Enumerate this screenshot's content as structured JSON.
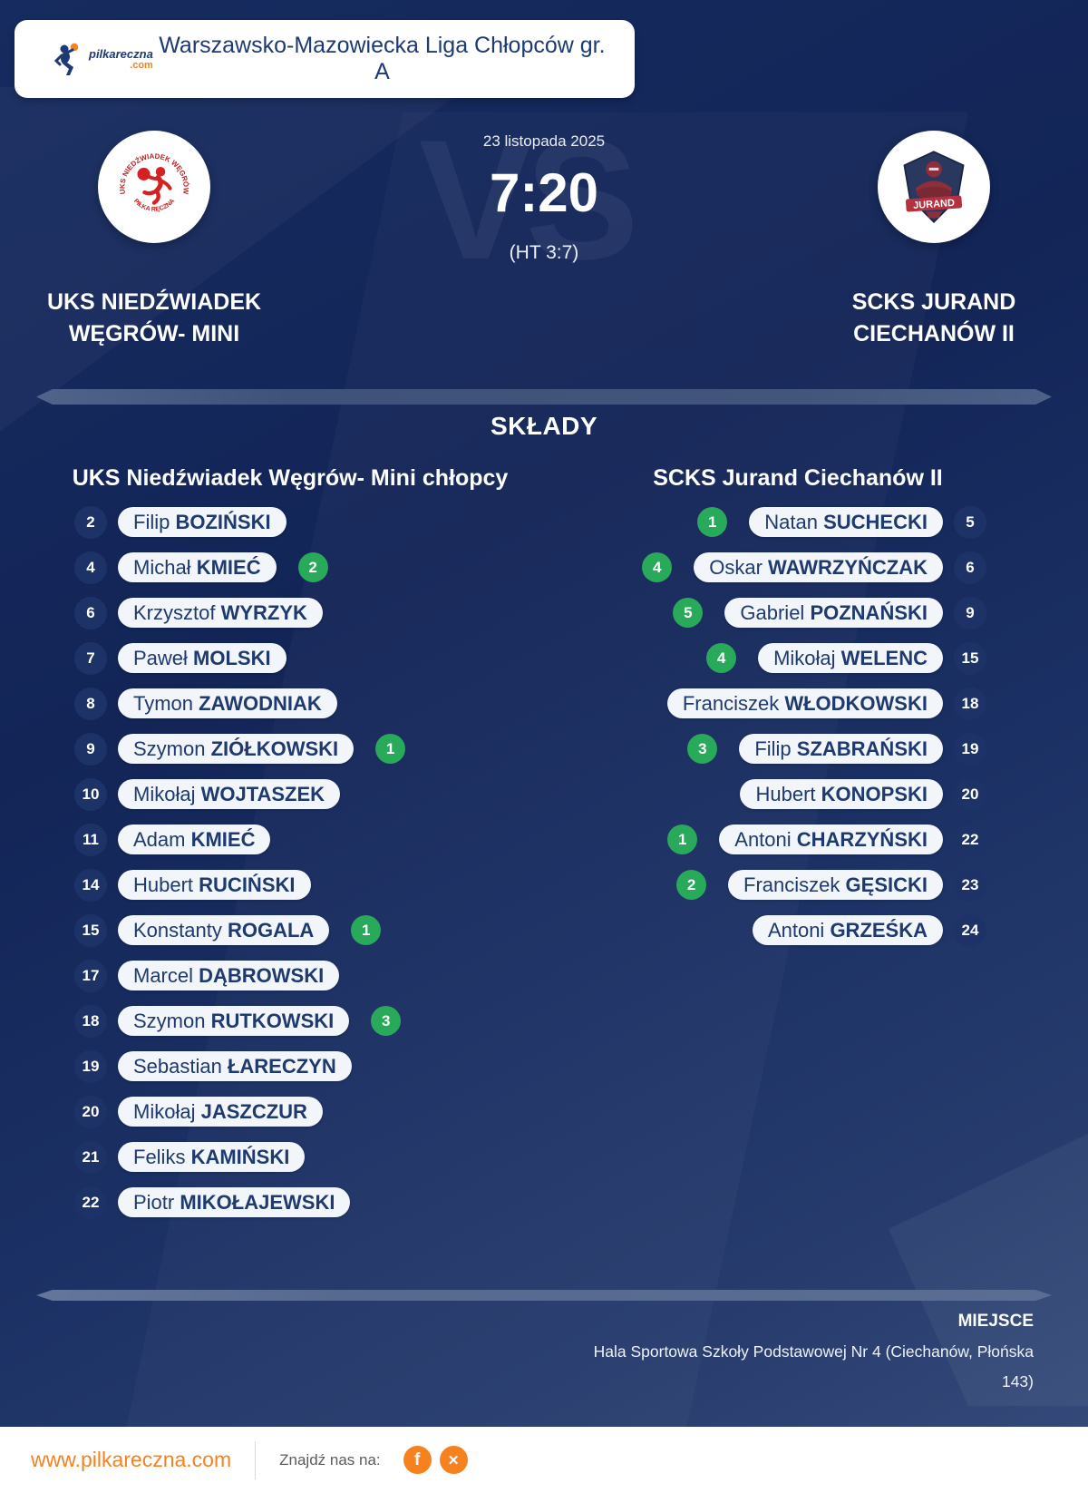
{
  "header": {
    "league_title": "Warszawsko-Mazowiecka Liga Chłopców gr. A",
    "brand": {
      "name": "pilkareczna",
      "tld": ".com"
    }
  },
  "match": {
    "date": "23 listopada 2025",
    "score": "7:20",
    "halftime": "(HT 3:7)",
    "vs": "VS",
    "home": {
      "name": "UKS NIEDŹWIADEK WĘGRÓW- MINI",
      "logo_arc_top": "UKS NIEDŹWIADEK WĘGRÓW",
      "logo_arc_bottom": "PIŁKA RĘCZNA"
    },
    "away": {
      "name": "SCKS JURAND CIECHANÓW II",
      "logo_banner": "JURAND"
    }
  },
  "lineups": {
    "section_title": "SKŁADY",
    "home": {
      "title": "UKS Niedźwiadek Węgrów- Mini chłopcy",
      "players": [
        {
          "number": "2",
          "first": "Filip",
          "last": "BOZIŃSKI",
          "goals": ""
        },
        {
          "number": "4",
          "first": "Michał",
          "last": "KMIEĆ",
          "goals": "2"
        },
        {
          "number": "6",
          "first": "Krzysztof",
          "last": "WYRZYK",
          "goals": ""
        },
        {
          "number": "7",
          "first": "Paweł",
          "last": "MOLSKI",
          "goals": ""
        },
        {
          "number": "8",
          "first": "Tymon",
          "last": "ZAWODNIAK",
          "goals": ""
        },
        {
          "number": "9",
          "first": "Szymon",
          "last": "ZIÓŁKOWSKI",
          "goals": "1"
        },
        {
          "number": "10",
          "first": "Mikołaj",
          "last": "WOJTASZEK",
          "goals": ""
        },
        {
          "number": "11",
          "first": "Adam",
          "last": "KMIEĆ",
          "goals": ""
        },
        {
          "number": "14",
          "first": "Hubert",
          "last": "RUCIŃSKI",
          "goals": ""
        },
        {
          "number": "15",
          "first": "Konstanty",
          "last": "ROGALA",
          "goals": "1"
        },
        {
          "number": "17",
          "first": "Marcel",
          "last": "DĄBROWSKI",
          "goals": ""
        },
        {
          "number": "18",
          "first": "Szymon",
          "last": "RUTKOWSKI",
          "goals": "3"
        },
        {
          "number": "19",
          "first": "Sebastian",
          "last": "ŁARECZYN",
          "goals": ""
        },
        {
          "number": "20",
          "first": "Mikołaj",
          "last": "JASZCZUR",
          "goals": ""
        },
        {
          "number": "21",
          "first": "Feliks",
          "last": "KAMIŃSKI",
          "goals": ""
        },
        {
          "number": "22",
          "first": "Piotr",
          "last": "MIKOŁAJEWSKI",
          "goals": ""
        }
      ]
    },
    "away": {
      "title": "SCKS Jurand Ciechanów II",
      "players": [
        {
          "number": "5",
          "first": "Natan",
          "last": "SUCHECKI",
          "goals": "1"
        },
        {
          "number": "6",
          "first": "Oskar",
          "last": "WAWRZYŃCZAK",
          "goals": "4"
        },
        {
          "number": "9",
          "first": "Gabriel",
          "last": "POZNAŃSKI",
          "goals": "5"
        },
        {
          "number": "15",
          "first": "Mikołaj",
          "last": "WELENC",
          "goals": "4"
        },
        {
          "number": "18",
          "first": "Franciszek",
          "last": "WŁODKOWSKI",
          "goals": ""
        },
        {
          "number": "19",
          "first": "Filip",
          "last": "SZABRAŃSKI",
          "goals": "3"
        },
        {
          "number": "20",
          "first": "Hubert",
          "last": "KONOPSKI",
          "goals": ""
        },
        {
          "number": "22",
          "first": "Antoni",
          "last": "CHARZYŃSKI",
          "goals": "1"
        },
        {
          "number": "23",
          "first": "Franciszek",
          "last": "GĘSICKI",
          "goals": "2"
        },
        {
          "number": "24",
          "first": "Antoni",
          "last": "GRZEŚKA",
          "goals": ""
        }
      ]
    }
  },
  "venue": {
    "label": "MIEJSCE",
    "line1": "Hala Sportowa Szkoły Podstawowej Nr 4 (Ciechanów, Płońska",
    "line2": "143)"
  },
  "footer": {
    "site": "www.pilkareczna.com",
    "find_us": "Znajdź nas na:",
    "facebook_glyph": "f",
    "x_glyph": "✕"
  },
  "colors": {
    "accent_green": "#29a95a",
    "brand_orange": "#f5821f",
    "navy_text": "#1e3a6e",
    "pill_bg": "#f2f5f9"
  }
}
